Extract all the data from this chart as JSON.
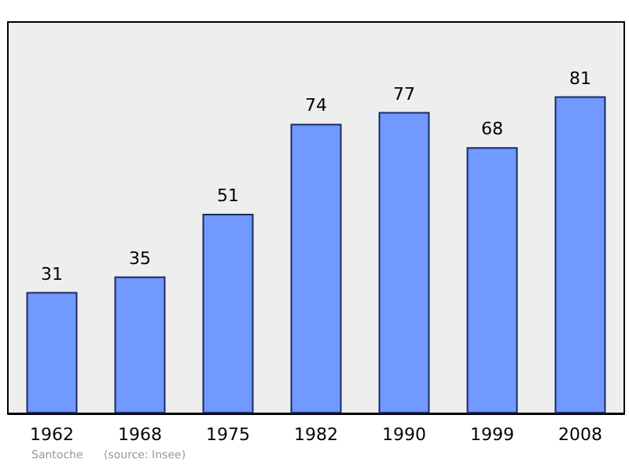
{
  "chart_data": {
    "type": "bar",
    "categories": [
      "1962",
      "1968",
      "1975",
      "1982",
      "1990",
      "1999",
      "2008"
    ],
    "values": [
      31,
      35,
      51,
      74,
      77,
      68,
      81
    ],
    "color": "#7199ff",
    "data_labels": true,
    "annotations": [
      "Santoche",
      "(source: Insee)"
    ]
  }
}
